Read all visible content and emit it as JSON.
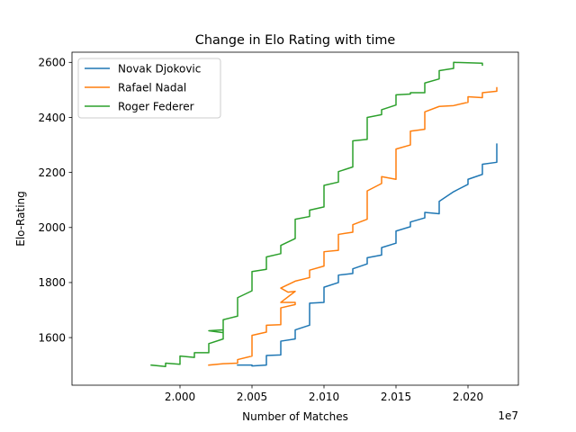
{
  "chart_data": {
    "type": "line",
    "title": "Change in Elo Rating with time",
    "xlabel": "Number of Matches",
    "ylabel": "Elo-Rating",
    "x_offset_label": "1e7",
    "xlim": [
      1.9925,
      2.0235
    ],
    "ylim": [
      1427,
      2637
    ],
    "x_ticks": [
      2.0,
      2.005,
      2.01,
      2.015,
      2.02
    ],
    "x_tick_labels": [
      "2.000",
      "2.005",
      "2.010",
      "2.015",
      "2.020"
    ],
    "y_ticks": [
      1600,
      1800,
      2000,
      2200,
      2400,
      2600
    ],
    "y_tick_labels": [
      "1600",
      "1800",
      "2000",
      "2200",
      "2400",
      "2600"
    ],
    "grid": false,
    "legend_position": "top-left",
    "series": [
      {
        "name": "Novak Djokovic",
        "color": "#1f77b4",
        "points": [
          [
            2.004,
            1500
          ],
          [
            2.005,
            1500
          ],
          [
            2.005,
            1497
          ],
          [
            2.006,
            1500
          ],
          [
            2.006,
            1535
          ],
          [
            2.007,
            1537
          ],
          [
            2.007,
            1587
          ],
          [
            2.008,
            1595
          ],
          [
            2.008,
            1628
          ],
          [
            2.009,
            1645
          ],
          [
            2.009,
            1725
          ],
          [
            2.01,
            1728
          ],
          [
            2.01,
            1783
          ],
          [
            2.011,
            1800
          ],
          [
            2.011,
            1827
          ],
          [
            2.012,
            1833
          ],
          [
            2.012,
            1850
          ],
          [
            2.013,
            1868
          ],
          [
            2.013,
            1890
          ],
          [
            2.014,
            1900
          ],
          [
            2.014,
            1927
          ],
          [
            2.015,
            1943
          ],
          [
            2.015,
            1987
          ],
          [
            2.016,
            2003
          ],
          [
            2.016,
            2020
          ],
          [
            2.017,
            2035
          ],
          [
            2.017,
            2055
          ],
          [
            2.018,
            2050
          ],
          [
            2.018,
            2095
          ],
          [
            2.019,
            2130
          ],
          [
            2.02,
            2157
          ],
          [
            2.02,
            2175
          ],
          [
            2.021,
            2193
          ],
          [
            2.021,
            2230
          ],
          [
            2.022,
            2237
          ],
          [
            2.022,
            2303
          ]
        ]
      },
      {
        "name": "Rafael Nadal",
        "color": "#ff7f0e",
        "points": [
          [
            2.002,
            1500
          ],
          [
            2.003,
            1505
          ],
          [
            2.004,
            1507
          ],
          [
            2.004,
            1520
          ],
          [
            2.005,
            1533
          ],
          [
            2.005,
            1608
          ],
          [
            2.006,
            1620
          ],
          [
            2.006,
            1645
          ],
          [
            2.007,
            1647
          ],
          [
            2.007,
            1708
          ],
          [
            2.008,
            1720
          ],
          [
            2.008,
            1728
          ],
          [
            2.007,
            1728
          ],
          [
            2.008,
            1768
          ],
          [
            2.0075,
            1765
          ],
          [
            2.007,
            1780
          ],
          [
            2.008,
            1805
          ],
          [
            2.009,
            1818
          ],
          [
            2.009,
            1845
          ],
          [
            2.01,
            1860
          ],
          [
            2.01,
            1912
          ],
          [
            2.011,
            1917
          ],
          [
            2.011,
            1975
          ],
          [
            2.012,
            1983
          ],
          [
            2.012,
            2010
          ],
          [
            2.013,
            2030
          ],
          [
            2.013,
            2133
          ],
          [
            2.014,
            2160
          ],
          [
            2.014,
            2185
          ],
          [
            2.015,
            2175
          ],
          [
            2.015,
            2285
          ],
          [
            2.016,
            2300
          ],
          [
            2.016,
            2350
          ],
          [
            2.017,
            2357
          ],
          [
            2.017,
            2420
          ],
          [
            2.018,
            2440
          ],
          [
            2.019,
            2443
          ],
          [
            2.02,
            2455
          ],
          [
            2.02,
            2475
          ],
          [
            2.021,
            2472
          ],
          [
            2.021,
            2490
          ],
          [
            2.022,
            2495
          ],
          [
            2.022,
            2508
          ]
        ]
      },
      {
        "name": "Roger Federer",
        "color": "#2ca02c",
        "points": [
          [
            1.998,
            1500
          ],
          [
            1.999,
            1495
          ],
          [
            1.999,
            1507
          ],
          [
            2.0,
            1503
          ],
          [
            2.0,
            1533
          ],
          [
            2.001,
            1528
          ],
          [
            2.001,
            1545
          ],
          [
            2.002,
            1545
          ],
          [
            2.002,
            1578
          ],
          [
            2.003,
            1595
          ],
          [
            2.003,
            1628
          ],
          [
            2.002,
            1625
          ],
          [
            2.003,
            1618
          ],
          [
            2.003,
            1665
          ],
          [
            2.004,
            1678
          ],
          [
            2.004,
            1745
          ],
          [
            2.005,
            1770
          ],
          [
            2.005,
            1840
          ],
          [
            2.006,
            1848
          ],
          [
            2.006,
            1893
          ],
          [
            2.007,
            1905
          ],
          [
            2.007,
            1935
          ],
          [
            2.008,
            1960
          ],
          [
            2.008,
            2030
          ],
          [
            2.009,
            2040
          ],
          [
            2.009,
            2063
          ],
          [
            2.01,
            2075
          ],
          [
            2.01,
            2153
          ],
          [
            2.011,
            2165
          ],
          [
            2.011,
            2203
          ],
          [
            2.012,
            2220
          ],
          [
            2.012,
            2315
          ],
          [
            2.013,
            2320
          ],
          [
            2.013,
            2400
          ],
          [
            2.014,
            2410
          ],
          [
            2.014,
            2428
          ],
          [
            2.015,
            2445
          ],
          [
            2.015,
            2482
          ],
          [
            2.016,
            2485
          ],
          [
            2.016,
            2490
          ],
          [
            2.017,
            2490
          ],
          [
            2.017,
            2525
          ],
          [
            2.018,
            2540
          ],
          [
            2.018,
            2570
          ],
          [
            2.019,
            2578
          ],
          [
            2.019,
            2600
          ],
          [
            2.021,
            2597
          ],
          [
            2.021,
            2590
          ]
        ]
      }
    ]
  }
}
